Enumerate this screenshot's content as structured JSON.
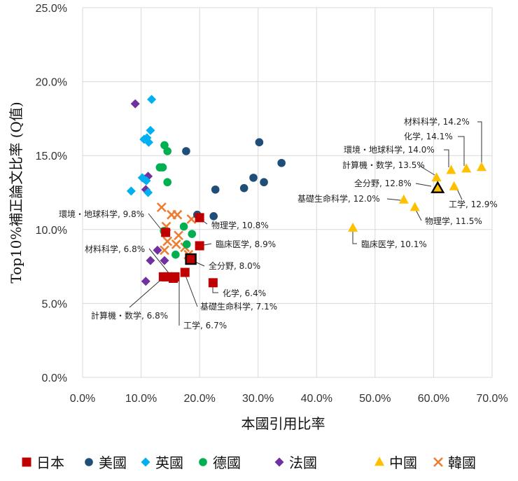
{
  "chart_data": {
    "type": "scatter",
    "xlabel": "本國引用比率",
    "ylabel": "Top10%補正論文比率 (Q值)",
    "xlim": [
      0,
      70
    ],
    "ylim": [
      0,
      25
    ],
    "x_ticks": [
      "0.0%",
      "10.0%",
      "20.0%",
      "30.0%",
      "40.0%",
      "50.0%",
      "60.0%",
      "70.0%"
    ],
    "y_ticks": [
      "0.0%",
      "5.0%",
      "10.0%",
      "15.0%",
      "20.0%",
      "25.0%"
    ],
    "grid": true,
    "legend_position": "bottom",
    "series": [
      {
        "name": "日本",
        "marker": "square",
        "color": "#C00000",
        "points": [
          [
            14.2,
            9.8
          ],
          [
            20.0,
            10.8
          ],
          [
            20.0,
            8.9
          ],
          [
            18.5,
            8.0
          ],
          [
            22.3,
            6.4
          ],
          [
            17.5,
            7.1
          ],
          [
            13.8,
            6.8
          ],
          [
            15.5,
            6.7
          ],
          [
            15.8,
            6.8
          ],
          [
            14.5,
            6.8
          ]
        ]
      },
      {
        "name": "美國",
        "marker": "circle",
        "color": "#1F4E79",
        "points": [
          [
            30.2,
            15.9
          ],
          [
            34.0,
            14.5
          ],
          [
            29.2,
            13.5
          ],
          [
            31.0,
            13.2
          ],
          [
            27.6,
            12.8
          ],
          [
            22.7,
            12.7
          ],
          [
            17.7,
            15.3
          ],
          [
            19.6,
            11.0
          ],
          [
            22.4,
            10.9
          ]
        ]
      },
      {
        "name": "英國",
        "marker": "diamond",
        "color": "#00B0F0",
        "points": [
          [
            11.8,
            18.8
          ],
          [
            11.6,
            16.7
          ],
          [
            10.5,
            16.1
          ],
          [
            11.0,
            16.2
          ],
          [
            11.3,
            15.9
          ],
          [
            10.2,
            13.5
          ],
          [
            10.9,
            13.3
          ],
          [
            8.3,
            12.6
          ],
          [
            11.2,
            12.5
          ]
        ]
      },
      {
        "name": "德國",
        "marker": "circle",
        "color": "#00B050",
        "points": [
          [
            14.0,
            15.7
          ],
          [
            14.5,
            15.3
          ],
          [
            13.2,
            14.2
          ],
          [
            13.7,
            14.2
          ],
          [
            14.5,
            13.2
          ],
          [
            13.9,
            9.9
          ],
          [
            17.3,
            10.2
          ],
          [
            18.7,
            9.7
          ],
          [
            17.8,
            9.0
          ],
          [
            15.9,
            8.3
          ]
        ]
      },
      {
        "name": "法國",
        "marker": "diamond",
        "color": "#7030A0",
        "points": [
          [
            9.0,
            18.5
          ],
          [
            11.2,
            13.6
          ],
          [
            10.6,
            13.4
          ],
          [
            10.8,
            12.7
          ],
          [
            12.8,
            8.6
          ],
          [
            11.6,
            7.9
          ],
          [
            14.0,
            7.9
          ],
          [
            10.8,
            6.5
          ]
        ]
      },
      {
        "name": "中國",
        "marker": "triangle",
        "color": "#FFC000",
        "points": [
          [
            68.2,
            14.2
          ],
          [
            65.6,
            14.1
          ],
          [
            63.0,
            14.0
          ],
          [
            60.5,
            13.5
          ],
          [
            60.7,
            12.8
          ],
          [
            63.5,
            12.9
          ],
          [
            54.9,
            12.0
          ],
          [
            56.8,
            11.5
          ],
          [
            46.2,
            10.1
          ]
        ]
      },
      {
        "name": "韓國",
        "marker": "x",
        "color": "#ED7D31",
        "points": [
          [
            13.5,
            11.5
          ],
          [
            15.2,
            11.0
          ],
          [
            16.2,
            11.0
          ],
          [
            18.6,
            10.7
          ],
          [
            14.3,
            10.2
          ],
          [
            16.4,
            9.6
          ],
          [
            14.5,
            9.2
          ],
          [
            16.0,
            9.0
          ],
          [
            17.5,
            8.8
          ],
          [
            18.1,
            8.3
          ],
          [
            14.0,
            8.6
          ]
        ]
      }
    ],
    "highlights": [
      {
        "series": "日本",
        "x": 18.5,
        "y": 8.0
      },
      {
        "series": "中國",
        "x": 60.7,
        "y": 12.8
      }
    ],
    "annotations": [
      {
        "text": "環境・地球科学, 9.8%",
        "x": 14.2,
        "y": 9.8
      },
      {
        "text": "物理学, 10.8%",
        "x": 20.0,
        "y": 10.8
      },
      {
        "text": "臨床医学, 8.9%",
        "x": 20.0,
        "y": 8.9
      },
      {
        "text": "材料科学, 6.8%",
        "x": 15.8,
        "y": 6.8
      },
      {
        "text": "全分野, 8.0%",
        "x": 18.5,
        "y": 8.0
      },
      {
        "text": "化学, 6.4%",
        "x": 22.3,
        "y": 6.4
      },
      {
        "text": "基礎生命科学, 7.1%",
        "x": 17.5,
        "y": 7.1
      },
      {
        "text": "計算機・数学, 6.8%",
        "x": 13.8,
        "y": 6.8
      },
      {
        "text": "工学, 6.7%",
        "x": 15.5,
        "y": 6.7
      },
      {
        "text": "材料科学, 14.2%",
        "x": 68.2,
        "y": 14.2
      },
      {
        "text": "化学, 14.1%",
        "x": 65.6,
        "y": 14.1
      },
      {
        "text": "環境・地球科学, 14.0%",
        "x": 63.0,
        "y": 14.0
      },
      {
        "text": "計算機・数学, 13.5%",
        "x": 60.5,
        "y": 13.5
      },
      {
        "text": "全分野, 12.8%",
        "x": 60.7,
        "y": 12.8
      },
      {
        "text": "工学, 12.9%",
        "x": 63.5,
        "y": 12.9
      },
      {
        "text": "基礎生命科学, 12.0%",
        "x": 54.9,
        "y": 12.0
      },
      {
        "text": "物理学, 11.5%",
        "x": 56.8,
        "y": 11.5
      },
      {
        "text": "臨床医学, 10.1%",
        "x": 46.2,
        "y": 10.1
      }
    ]
  }
}
